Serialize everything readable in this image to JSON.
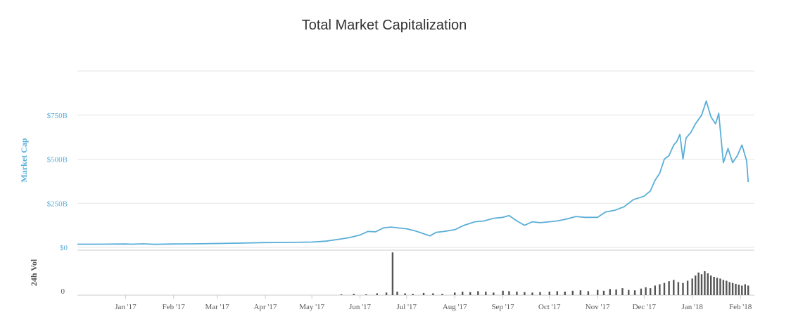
{
  "chart_data": {
    "type": "line",
    "title": "Total Market Capitalization",
    "xlabel": "",
    "ylabel": "Market Cap",
    "ylim": [
      0,
      1000
    ],
    "y_ticks": [
      {
        "value": 0,
        "label": "$0"
      },
      {
        "value": 250,
        "label": "$250B"
      },
      {
        "value": 500,
        "label": "$500B"
      },
      {
        "value": 750,
        "label": "$750B"
      }
    ],
    "x_range": [
      "2016-12-01",
      "2018-02-10"
    ],
    "x_ticks": [
      {
        "date": "2017-01-01",
        "label": "Jan '17"
      },
      {
        "date": "2017-02-01",
        "label": "Feb '17"
      },
      {
        "date": "2017-03-01",
        "label": "Mar '17"
      },
      {
        "date": "2017-04-01",
        "label": "Apr '17"
      },
      {
        "date": "2017-05-01",
        "label": "May '17"
      },
      {
        "date": "2017-06-01",
        "label": "Jun '17"
      },
      {
        "date": "2017-07-01",
        "label": "Jul '17"
      },
      {
        "date": "2017-08-01",
        "label": "Aug '17"
      },
      {
        "date": "2017-09-01",
        "label": "Sep '17"
      },
      {
        "date": "2017-10-01",
        "label": "Oct '17"
      },
      {
        "date": "2017-11-01",
        "label": "Nov '17"
      },
      {
        "date": "2017-12-01",
        "label": "Dec '17"
      },
      {
        "date": "2018-01-01",
        "label": "Jan '18"
      },
      {
        "date": "2018-02-01",
        "label": "Feb '18"
      }
    ],
    "grid": true,
    "line_color": "#5aaed8",
    "series": [
      {
        "x": [
          "2016-12-01",
          "2016-12-15",
          "2017-01-01",
          "2017-01-05",
          "2017-01-12",
          "2017-01-20",
          "2017-02-01",
          "2017-02-15",
          "2017-03-01",
          "2017-03-15",
          "2017-04-01",
          "2017-04-15",
          "2017-05-01",
          "2017-05-10",
          "2017-05-20",
          "2017-05-25",
          "2017-06-01",
          "2017-06-06",
          "2017-06-11",
          "2017-06-16",
          "2017-06-21",
          "2017-06-26",
          "2017-07-01",
          "2017-07-06",
          "2017-07-11",
          "2017-07-16",
          "2017-07-20",
          "2017-07-25",
          "2017-08-01",
          "2017-08-07",
          "2017-08-14",
          "2017-08-20",
          "2017-08-26",
          "2017-09-01",
          "2017-09-05",
          "2017-09-10",
          "2017-09-15",
          "2017-09-20",
          "2017-09-25",
          "2017-10-01",
          "2017-10-06",
          "2017-10-12",
          "2017-10-18",
          "2017-10-24",
          "2017-11-01",
          "2017-11-06",
          "2017-11-12",
          "2017-11-18",
          "2017-11-24",
          "2017-12-01",
          "2017-12-05",
          "2017-12-08",
          "2017-12-11",
          "2017-12-14",
          "2017-12-17",
          "2017-12-20",
          "2017-12-22",
          "2017-12-24",
          "2017-12-26",
          "2017-12-28",
          "2017-12-31",
          "2018-01-03",
          "2018-01-07",
          "2018-01-10",
          "2018-01-13",
          "2018-01-16",
          "2018-01-18",
          "2018-01-21",
          "2018-01-24",
          "2018-01-27",
          "2018-01-30",
          "2018-02-02",
          "2018-02-05",
          "2018-02-06"
        ],
        "values": [
          18,
          18,
          19,
          18,
          20,
          17,
          19,
          20,
          22,
          24,
          27,
          28,
          30,
          35,
          48,
          55,
          70,
          90,
          88,
          110,
          115,
          110,
          105,
          95,
          80,
          65,
          85,
          90,
          100,
          125,
          145,
          150,
          165,
          170,
          180,
          150,
          125,
          145,
          140,
          145,
          150,
          160,
          175,
          170,
          170,
          200,
          210,
          230,
          270,
          290,
          320,
          380,
          420,
          500,
          520,
          580,
          600,
          640,
          500,
          620,
          650,
          700,
          750,
          830,
          740,
          700,
          760,
          480,
          560,
          480,
          520,
          580,
          490,
          370
        ]
      }
    ],
    "volume": {
      "label": "24h Vol",
      "ticks": [
        {
          "value": 0,
          "label": "0"
        }
      ],
      "ylim": [
        0,
        100
      ],
      "x": [
        "2017-05-20",
        "2017-05-28",
        "2017-06-05",
        "2017-06-12",
        "2017-06-18",
        "2017-06-22",
        "2017-06-25",
        "2017-06-30",
        "2017-07-05",
        "2017-07-12",
        "2017-07-18",
        "2017-07-24",
        "2017-08-01",
        "2017-08-06",
        "2017-08-11",
        "2017-08-16",
        "2017-08-21",
        "2017-08-26",
        "2017-09-01",
        "2017-09-05",
        "2017-09-10",
        "2017-09-15",
        "2017-09-20",
        "2017-09-25",
        "2017-10-01",
        "2017-10-06",
        "2017-10-11",
        "2017-10-16",
        "2017-10-21",
        "2017-10-26",
        "2017-11-01",
        "2017-11-05",
        "2017-11-09",
        "2017-11-13",
        "2017-11-17",
        "2017-11-21",
        "2017-11-25",
        "2017-11-29",
        "2017-12-02",
        "2017-12-05",
        "2017-12-08",
        "2017-12-11",
        "2017-12-14",
        "2017-12-17",
        "2017-12-20",
        "2017-12-23",
        "2017-12-26",
        "2017-12-29",
        "2018-01-01",
        "2018-01-03",
        "2018-01-05",
        "2018-01-07",
        "2018-01-09",
        "2018-01-11",
        "2018-01-13",
        "2018-01-15",
        "2018-01-17",
        "2018-01-19",
        "2018-01-21",
        "2018-01-23",
        "2018-01-25",
        "2018-01-27",
        "2018-01-29",
        "2018-01-31",
        "2018-02-02",
        "2018-02-04",
        "2018-02-06"
      ],
      "values": [
        2,
        3,
        2,
        4,
        6,
        98,
        8,
        4,
        3,
        5,
        4,
        3,
        6,
        8,
        7,
        9,
        8,
        6,
        10,
        9,
        8,
        7,
        6,
        7,
        8,
        9,
        8,
        10,
        11,
        9,
        12,
        10,
        14,
        13,
        16,
        12,
        11,
        15,
        18,
        16,
        22,
        25,
        28,
        32,
        35,
        30,
        28,
        33,
        38,
        45,
        52,
        48,
        55,
        50,
        45,
        42,
        40,
        38,
        35,
        33,
        30,
        28,
        26,
        24,
        22,
        25,
        22
      ]
    }
  }
}
